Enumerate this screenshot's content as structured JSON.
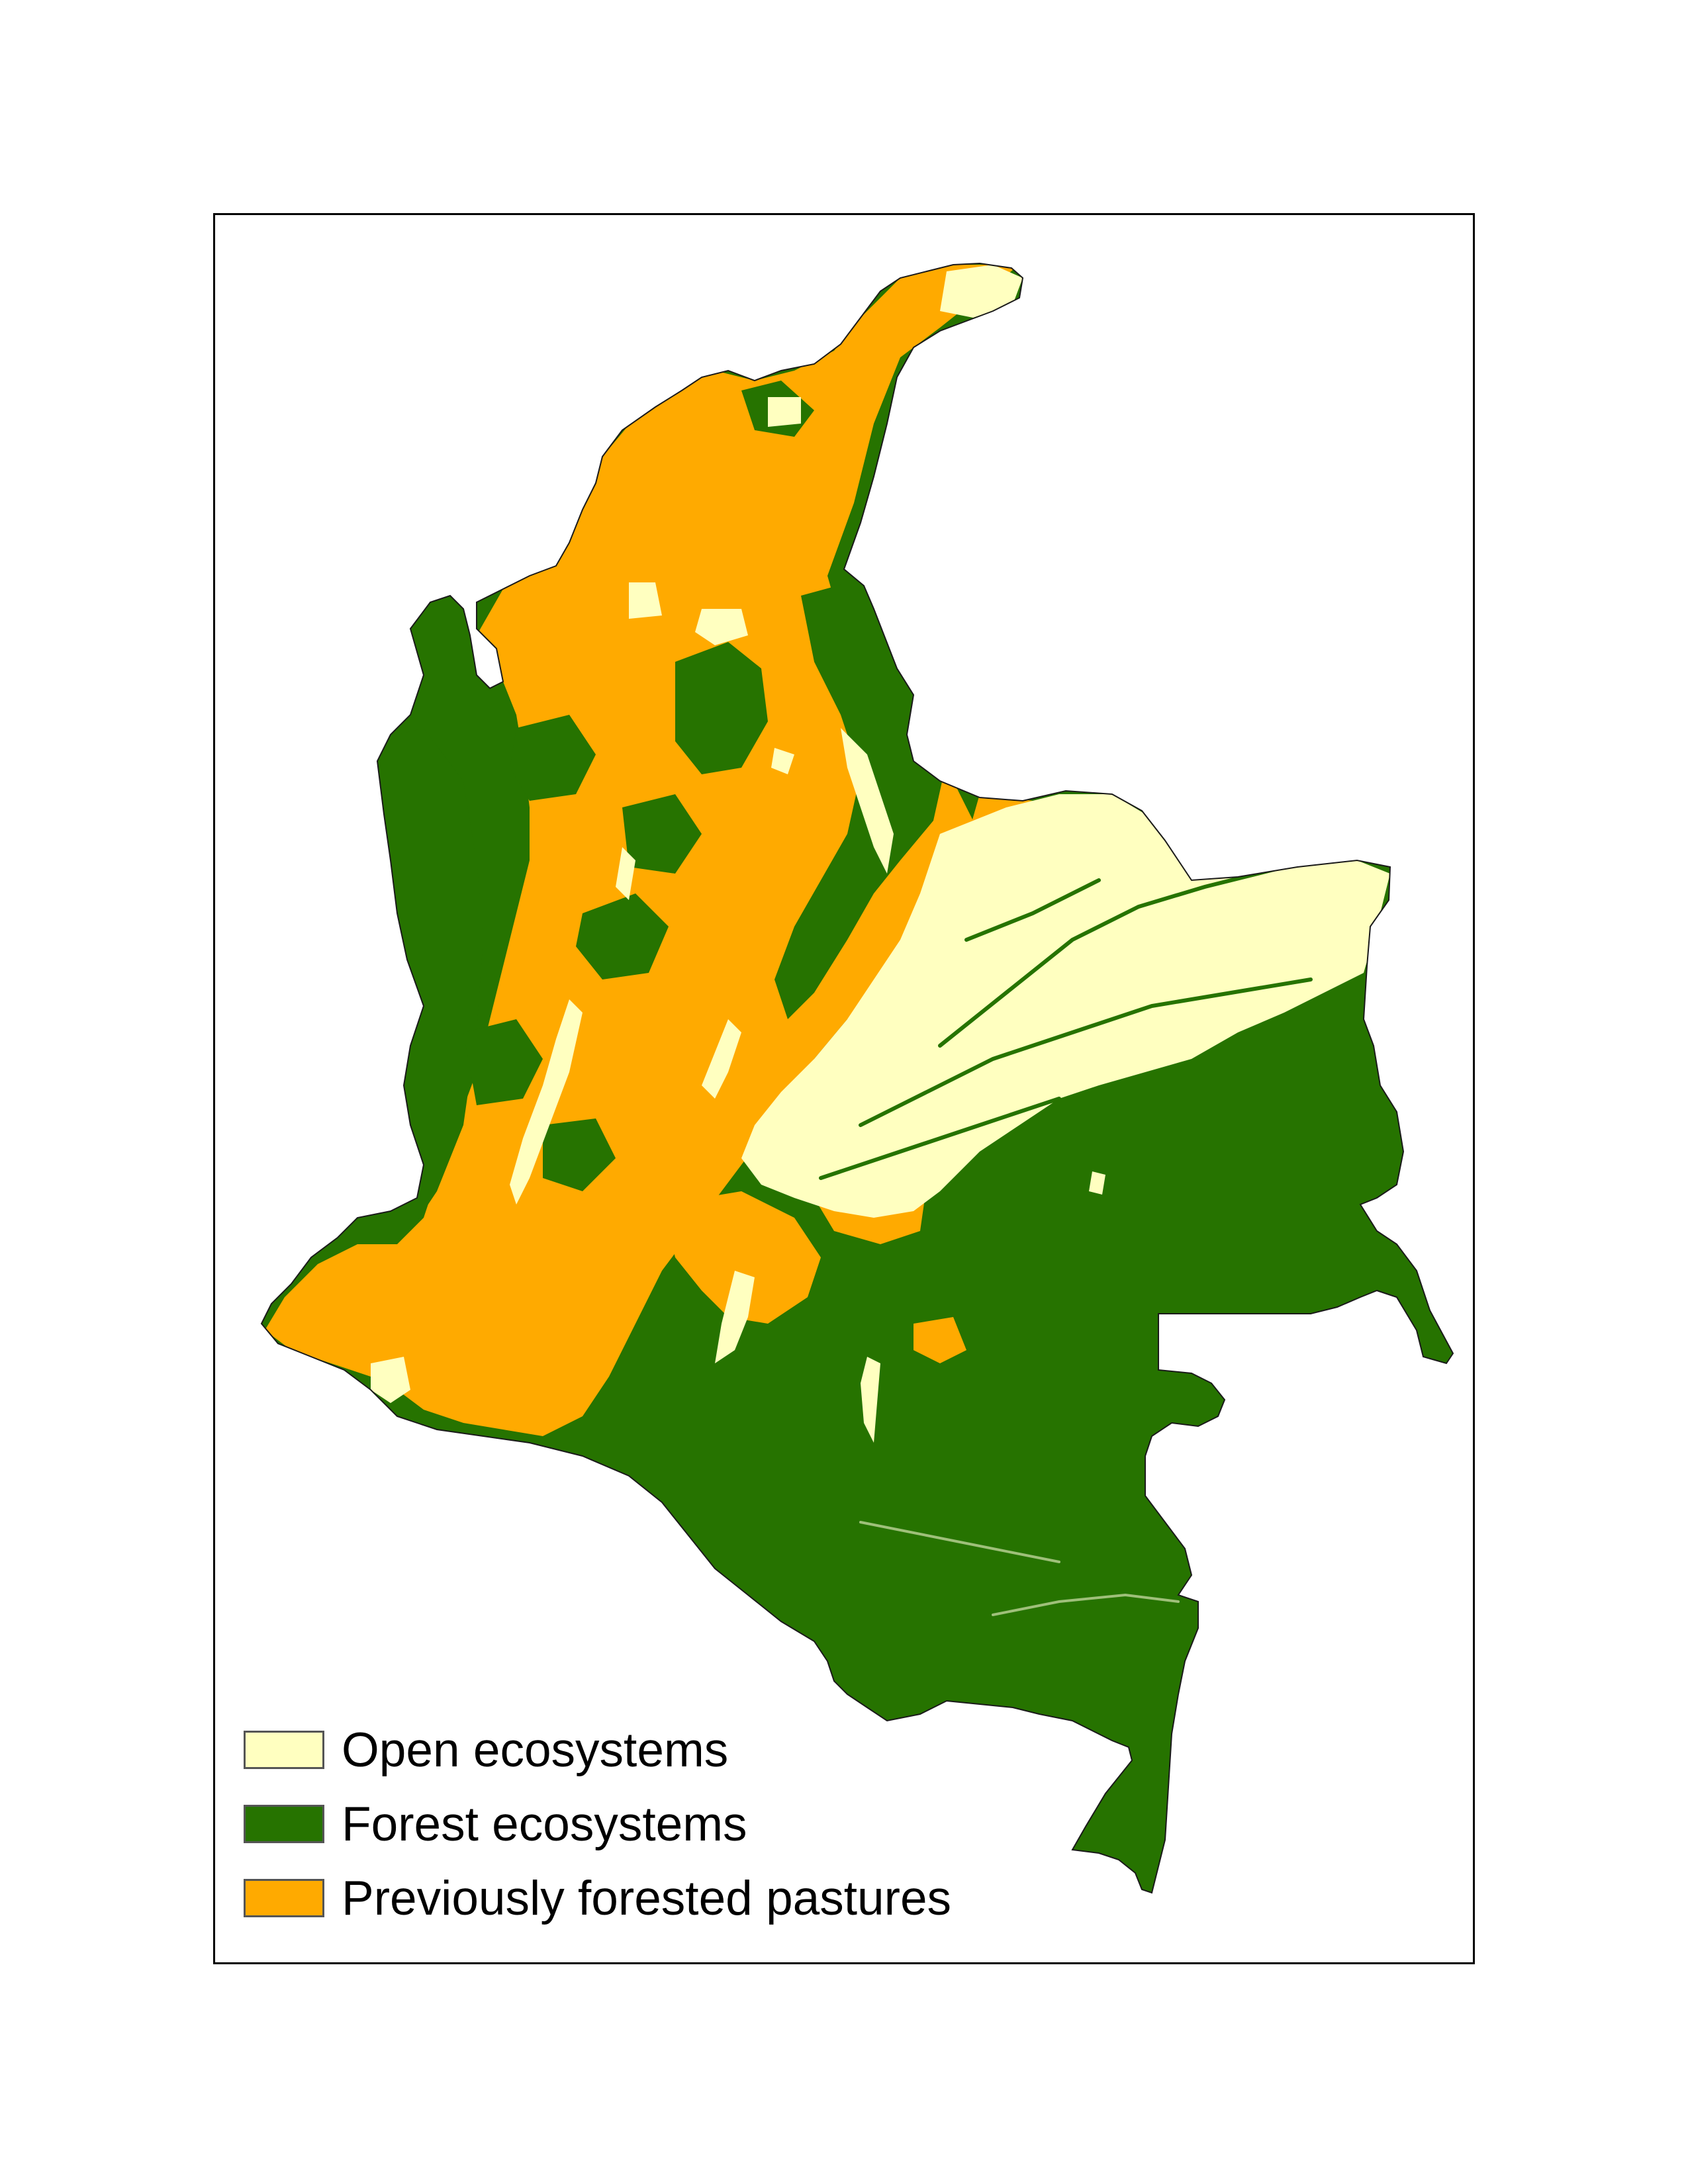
{
  "colors": {
    "open": "#ffffc0",
    "forest": "#267300",
    "pasture": "#ffaa00",
    "frame": "#000000"
  },
  "legend": {
    "items": [
      {
        "label": "Open ecosystems",
        "color": "#ffffc0"
      },
      {
        "label": "Forest ecosystems",
        "color": "#267300"
      },
      {
        "label": "Previously forested pastures",
        "color": "#ffaa00"
      }
    ]
  }
}
